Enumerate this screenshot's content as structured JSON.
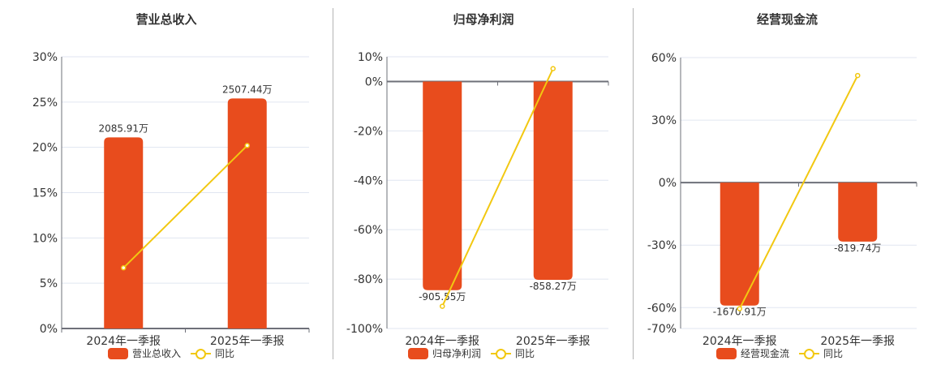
{
  "colors": {
    "bar": "#e84c1d",
    "line": "#f2c811",
    "axis": "#6e7079",
    "grid": "#e0e6f1",
    "text": "#333333",
    "divider": "#b3b3b3"
  },
  "legend": {
    "line_label": "同比"
  },
  "chart_data": [
    {
      "type": "bar+line",
      "title": "营业总收入",
      "categories": [
        "2024年一季报",
        "2025年一季报"
      ],
      "series": [
        {
          "name": "营业总收入",
          "type": "bar",
          "values": [
            2085.91,
            2507.44
          ],
          "labels": [
            "2085.91万",
            "2507.44万"
          ],
          "unit": "万"
        },
        {
          "name": "同比",
          "type": "line",
          "values": [
            6.7,
            20.2
          ],
          "unit": "%"
        }
      ],
      "yaxis": {
        "ticks": [
          "30%",
          "25%",
          "20%",
          "15%",
          "10%",
          "5%",
          "0%"
        ],
        "tick_values": [
          30,
          25,
          20,
          15,
          10,
          5,
          0
        ],
        "ylim": [
          0,
          30
        ]
      },
      "bar_pct": [
        21.1,
        25.4
      ],
      "legend_position": "bottom"
    },
    {
      "type": "bar+line",
      "title": "归母净利润",
      "categories": [
        "2024年一季报",
        "2025年一季报"
      ],
      "series": [
        {
          "name": "归母净利润",
          "type": "bar",
          "values": [
            -905.55,
            -858.27
          ],
          "labels": [
            "-905.55万",
            "-858.27万"
          ],
          "unit": "万"
        },
        {
          "name": "同比",
          "type": "line",
          "values": [
            -91.0,
            5.2
          ],
          "unit": "%"
        }
      ],
      "yaxis": {
        "ticks": [
          "10%",
          "0%",
          "-20%",
          "-40%",
          "-60%",
          "-80%",
          "-100%"
        ],
        "tick_values": [
          10,
          0,
          -20,
          -40,
          -60,
          -80,
          -100
        ],
        "ylim": [
          -100,
          10
        ]
      },
      "bar_pct": [
        -84.5,
        -80.3
      ],
      "legend_position": "bottom"
    },
    {
      "type": "bar+line",
      "title": "经营现金流",
      "categories": [
        "2024年一季报",
        "2025年一季报"
      ],
      "series": [
        {
          "name": "经营现金流",
          "type": "bar",
          "values": [
            -1670.91,
            -819.74
          ],
          "labels": [
            "-1670.91万",
            "-819.74万"
          ],
          "unit": "万"
        },
        {
          "name": "同比",
          "type": "line",
          "values": [
            -60.5,
            51.4
          ],
          "unit": "%"
        }
      ],
      "yaxis": {
        "ticks": [
          "60%",
          "30%",
          "0%",
          "-30%",
          "-60%",
          "-70%"
        ],
        "tick_values": [
          60,
          30,
          0,
          -30,
          -60,
          -70
        ],
        "ylim": [
          -70,
          60
        ]
      },
      "bar_pct": [
        -59.0,
        -28.3
      ],
      "legend_position": "bottom"
    }
  ]
}
